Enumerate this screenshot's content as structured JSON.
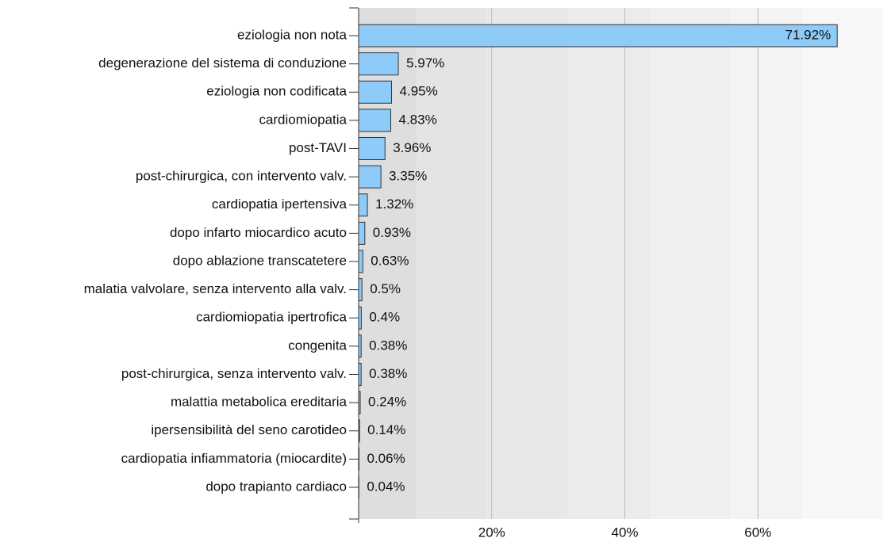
{
  "chart_data": {
    "type": "bar",
    "orientation": "horizontal",
    "categories": [
      "eziologia non nota",
      "degenerazione del sistema di conduzione",
      "eziologia non codificata",
      "cardiomiopatia",
      "post-TAVI",
      "post-chirurgica, con intervento valv.",
      "cardiopatia ipertensiva",
      "dopo infarto miocardico acuto",
      "dopo ablazione transcatetere",
      "malatia valvolare, senza intervento alla valv.",
      "cardiomiopatia ipertrofica",
      "congenita",
      "post-chirurgica, senza intervento valv.",
      "malattia metabolica ereditaria",
      "ipersensibilità del seno carotideo",
      "cardiopatia infiammatoria (miocardite)",
      "dopo trapianto cardiaco"
    ],
    "values": [
      71.92,
      5.97,
      4.95,
      4.83,
      3.96,
      3.35,
      1.32,
      0.93,
      0.63,
      0.5,
      0.4,
      0.38,
      0.38,
      0.24,
      0.14,
      0.06,
      0.04
    ],
    "value_labels": [
      "71.92%",
      "5.97%",
      "4.95%",
      "4.83%",
      "3.96%",
      "3.35%",
      "1.32%",
      "0.93%",
      "0.63%",
      "0.5%",
      "0.4%",
      "0.38%",
      "0.38%",
      "0.24%",
      "0.14%",
      "0.06%",
      "0.04%"
    ],
    "color": "#8ecbf8",
    "xlim": [
      0,
      80
    ],
    "xticks": [
      {
        "value": 20,
        "label": "20%"
      },
      {
        "value": 40,
        "label": "40%"
      },
      {
        "value": 60,
        "label": "60%"
      }
    ],
    "grid": true
  }
}
